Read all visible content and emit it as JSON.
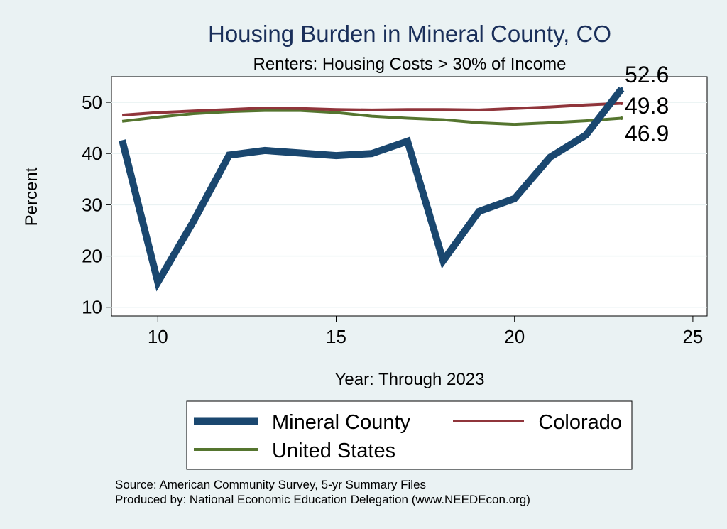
{
  "chart_data": {
    "type": "line",
    "title": "Housing Burden in Mineral County, CO",
    "subtitle": "Renters: Housing Costs > 30% of Income",
    "xlabel": "Year: Through 2023",
    "ylabel": "Percent",
    "xlim": [
      8.7,
      25.4
    ],
    "ylim": [
      8.3,
      55
    ],
    "xticks": [
      10,
      15,
      20,
      25
    ],
    "yticks": [
      10,
      20,
      30,
      40,
      50
    ],
    "grid": true,
    "legend_position": "bottom",
    "series": [
      {
        "name": "Mineral County",
        "color": "#1a476f",
        "x": [
          9,
          10,
          11,
          12,
          13,
          14,
          15,
          16,
          17,
          18,
          19,
          20,
          21,
          22,
          23
        ],
        "values": [
          42.6,
          14.9,
          26.8,
          39.7,
          40.6,
          40.1,
          39.6,
          40.0,
          42.4,
          19.1,
          28.7,
          31.2,
          39.3,
          43.6,
          52.6
        ],
        "end_label": "52.6"
      },
      {
        "name": "Colorado",
        "color": "#90353b",
        "x": [
          9,
          10,
          11,
          12,
          13,
          14,
          15,
          16,
          17,
          18,
          19,
          20,
          21,
          22,
          23
        ],
        "values": [
          47.5,
          48.0,
          48.3,
          48.6,
          48.9,
          48.8,
          48.6,
          48.5,
          48.6,
          48.6,
          48.5,
          48.8,
          49.1,
          49.5,
          49.8
        ],
        "end_label": "49.8"
      },
      {
        "name": "United States",
        "color": "#55752f",
        "x": [
          9,
          10,
          11,
          12,
          13,
          14,
          15,
          16,
          17,
          18,
          19,
          20,
          21,
          22,
          23
        ],
        "values": [
          46.3,
          47.1,
          47.8,
          48.2,
          48.4,
          48.4,
          48.0,
          47.3,
          46.9,
          46.6,
          46.0,
          45.7,
          46.0,
          46.4,
          46.9
        ],
        "end_label": "46.9"
      }
    ],
    "notes": [
      "Source: American Community Survey, 5-yr Summary Files",
      "Produced by: National Economic Education Delegation (www.NEEDEcon.org)"
    ]
  }
}
